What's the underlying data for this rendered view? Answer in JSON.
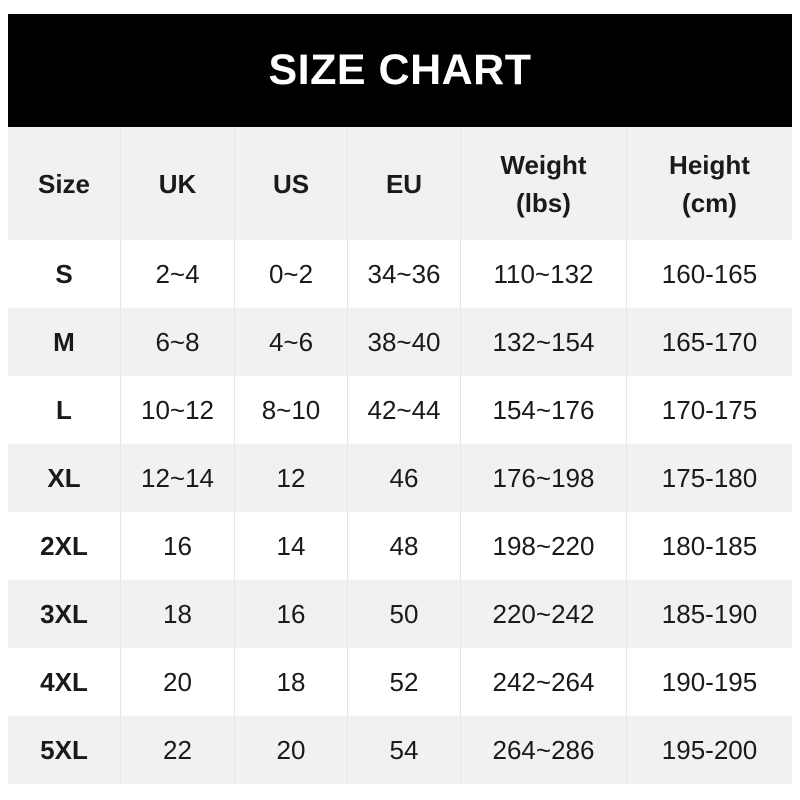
{
  "title": "SIZE CHART",
  "headers": [
    {
      "line1": "Size",
      "line2": ""
    },
    {
      "line1": "UK",
      "line2": ""
    },
    {
      "line1": "US",
      "line2": ""
    },
    {
      "line1": "EU",
      "line2": ""
    },
    {
      "line1": "Weight",
      "line2": "(lbs)"
    },
    {
      "line1": "Height",
      "line2": "(cm)"
    }
  ],
  "rows": [
    [
      "S",
      "2~4",
      "0~2",
      "34~36",
      "110~132",
      "160-165"
    ],
    [
      "M",
      "6~8",
      "4~6",
      "38~40",
      "132~154",
      "165-170"
    ],
    [
      "L",
      "10~12",
      "8~10",
      "42~44",
      "154~176",
      "170-175"
    ],
    [
      "XL",
      "12~14",
      "12",
      "46",
      "176~198",
      "175-180"
    ],
    [
      "2XL",
      "16",
      "14",
      "48",
      "198~220",
      "180-185"
    ],
    [
      "3XL",
      "18",
      "16",
      "50",
      "220~242",
      "185-190"
    ],
    [
      "4XL",
      "20",
      "18",
      "52",
      "242~264",
      "190-195"
    ],
    [
      "5XL",
      "22",
      "20",
      "54",
      "264~286",
      "195-200"
    ]
  ],
  "colors": {
    "title_bg": "#000000",
    "header_bg": "#f1f1f1",
    "stripe_bg": "#f1f1f1"
  }
}
